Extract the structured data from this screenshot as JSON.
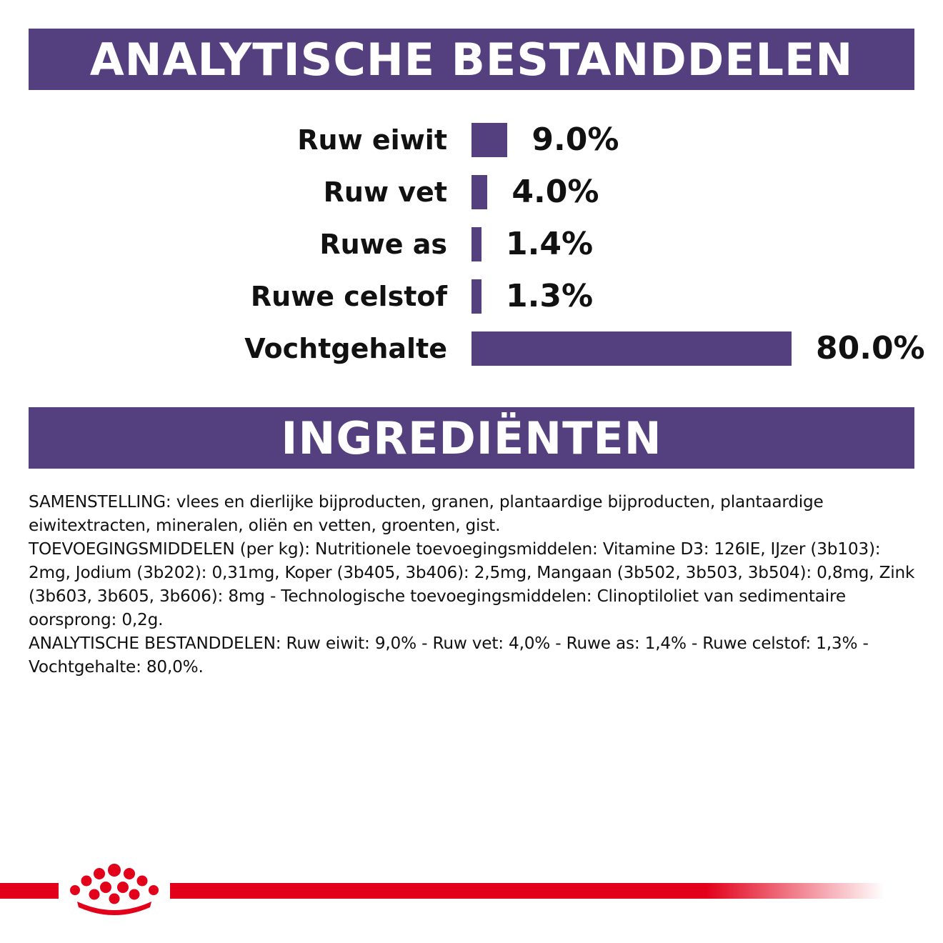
{
  "header": {
    "title": "ANALYTISCHE BESTANDDELEN"
  },
  "chart_data": {
    "type": "bar",
    "orientation": "horizontal",
    "title": "ANALYTISCHE BESTANDDELEN",
    "categories": [
      "Ruw eiwit",
      "Ruw vet",
      "Ruwe as",
      "Ruwe celstof",
      "Vochtgehalte"
    ],
    "values": [
      9.0,
      4.0,
      1.4,
      1.3,
      80.0
    ],
    "value_labels": [
      "9.0%",
      "4.0%",
      "1.4%",
      "1.3%",
      "80.0%"
    ],
    "unit": "%",
    "xlim": [
      0,
      80
    ],
    "grid": false,
    "legend": "none",
    "bar_color": "#55407f"
  },
  "ingredients": {
    "title": "INGREDIËNTEN",
    "paragraphs": [
      "SAMENSTELLING: vlees en dierlijke bijproducten, granen, plantaardige bijproducten, plantaardige eiwitextracten, mineralen, oliën en vetten, groenten, gist.",
      "TOEVOEGINGSMIDDELEN (per kg): Nutritionele toevoegingsmiddelen: Vitamine D3: 126IE, IJzer (3b103): 2mg, Jodium (3b202): 0,31mg, Koper (3b405, 3b406): 2,5mg, Mangaan (3b502, 3b503, 3b504): 0,8mg, Zink (3b603, 3b605, 3b606): 8mg - Technologische toevoegingsmiddelen: Clinoptiloliet van sedimentaire oorsprong: 0,2g.",
      "ANALYTISCHE BESTANDDELEN: Ruw eiwit: 9,0% - Ruw vet: 4,0% - Ruwe as: 1,4% - Ruwe celstof: 1,3% - Vochtgehalte: 80,0%."
    ]
  },
  "colors": {
    "banner": "#55407f",
    "brand_red": "#e2001a",
    "text": "#111111"
  },
  "footer": {
    "logo_icon": "royal-canin-crown-icon"
  }
}
